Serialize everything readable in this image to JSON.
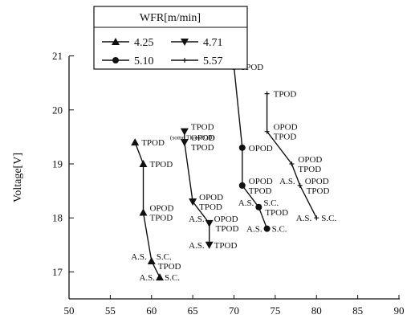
{
  "chart_data": {
    "type": "line",
    "ylabel": "Voltage[V]",
    "xlim": [
      50,
      90
    ],
    "ylim": [
      16.5,
      21.5
    ],
    "x_ticks": [
      50,
      55,
      60,
      65,
      70,
      75,
      80,
      85,
      90
    ],
    "y_ticks": [
      17,
      18,
      19,
      20,
      21
    ],
    "legend": {
      "title": "WFR[m/min]",
      "placement": "top-left"
    },
    "series": [
      {
        "name": "4.25",
        "marker": "triangle-up",
        "points": [
          {
            "x": 58.0,
            "y": 19.4,
            "label": "TPOD"
          },
          {
            "x": 59.0,
            "y": 19.0,
            "label": "TPOD"
          },
          {
            "x": 59.0,
            "y": 18.1,
            "label": "OPOD\nTPOD"
          },
          {
            "x": 60.0,
            "y": 17.2,
            "label": "A.S.|S.C.\nTPOD"
          },
          {
            "x": 61.0,
            "y": 16.9,
            "label": "A.S.|S.C."
          }
        ]
      },
      {
        "name": "4.71",
        "marker": "triangle-down",
        "points": [
          {
            "x": 64.0,
            "y": 19.6,
            "label": "TPOD\n(some ThreePOD)"
          },
          {
            "x": 64.0,
            "y": 19.4,
            "label": "OPOD\nTPOD"
          },
          {
            "x": 65.0,
            "y": 18.3,
            "label": "OPOD\nTPOD"
          },
          {
            "x": 67.0,
            "y": 17.9,
            "label": "A.S.|OPOD\nTPOD"
          },
          {
            "x": 67.0,
            "y": 17.5,
            "label": "A.S.|TPOD"
          }
        ]
      },
      {
        "name": "5.10",
        "marker": "circle",
        "points": [
          {
            "x": 70.0,
            "y": 20.8,
            "label": "TPOD"
          },
          {
            "x": 71.0,
            "y": 19.3,
            "label": "OPOD"
          },
          {
            "x": 71.0,
            "y": 18.6,
            "label": "OPOD\nTPOD"
          },
          {
            "x": 73.0,
            "y": 18.2,
            "label": "A.S.|S.C.\nTPOD"
          },
          {
            "x": 74.0,
            "y": 17.8,
            "label": "A.S.|S.C."
          }
        ]
      },
      {
        "name": "5.57",
        "marker": "plus",
        "points": [
          {
            "x": 74.0,
            "y": 20.3,
            "label": "TPOD"
          },
          {
            "x": 74.0,
            "y": 19.6,
            "label": "OPOD\nTPOD"
          },
          {
            "x": 77.0,
            "y": 19.0,
            "label": "OPOD\nTPOD"
          },
          {
            "x": 78.0,
            "y": 18.6,
            "label": "A.S.|OPOD\nTPOD"
          },
          {
            "x": 80.0,
            "y": 18.0,
            "label": "A.S.|S.C."
          }
        ]
      }
    ]
  }
}
